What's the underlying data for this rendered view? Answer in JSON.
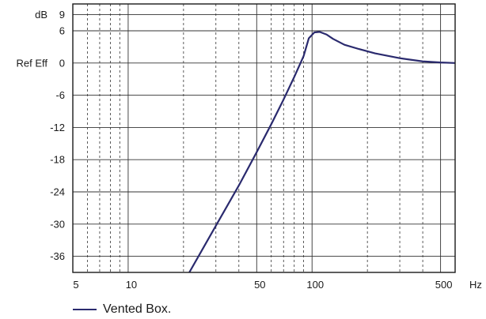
{
  "chart_data": {
    "type": "line",
    "xscale": "log",
    "xlim": [
      5,
      600
    ],
    "ylim": [
      -39,
      11
    ],
    "x_major_ticks": [
      5,
      10,
      50,
      100,
      500
    ],
    "x_minor_ticks": [
      6,
      7,
      8,
      9,
      20,
      30,
      40,
      60,
      70,
      80,
      90,
      200,
      300,
      400
    ],
    "x_tick_labels": [
      "5",
      "10",
      "50",
      "100",
      "500"
    ],
    "xunit": "Hz",
    "y_ticks": [
      9,
      6,
      0,
      -6,
      -12,
      -18,
      -24,
      -30,
      -36
    ],
    "y_tick_labels": [
      "9",
      "6",
      "0",
      "-6",
      "-12",
      "-18",
      "-24",
      "-30",
      "-36"
    ],
    "y_ref_label": "Ref Eff",
    "yunit": "dB",
    "grid": true,
    "legend_position": "bottom-left",
    "line_color": "#2a2a6e",
    "series": [
      {
        "name": "Vented Box.",
        "x": [
          21.5,
          30,
          40,
          50,
          60,
          70,
          80,
          90,
          96,
          103,
          110,
          120,
          130,
          150,
          180,
          220,
          300,
          400,
          500,
          600
        ],
        "y": [
          -39,
          -30.3,
          -22.8,
          -16.6,
          -11.4,
          -6.8,
          -2.6,
          1.3,
          4.6,
          5.7,
          5.8,
          5.3,
          4.5,
          3.4,
          2.6,
          1.8,
          0.9,
          0.3,
          0.1,
          0
        ]
      }
    ]
  }
}
